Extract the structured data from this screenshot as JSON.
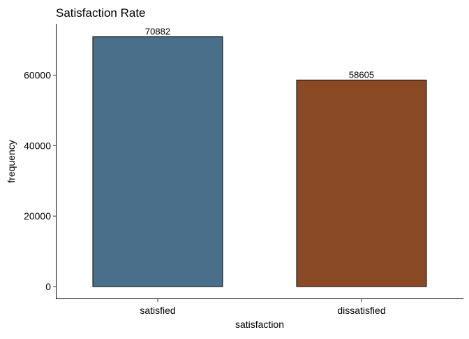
{
  "chart_data": {
    "type": "bar",
    "title": "Satisfaction Rate",
    "xlabel": "satisfaction",
    "ylabel": "frequency",
    "categories": [
      "satisfied",
      "dissatisfied"
    ],
    "values": [
      70882,
      58605
    ],
    "data_labels": [
      "70882",
      "58605"
    ],
    "colors": [
      "#4A6F8A",
      "#8B4A26"
    ],
    "bar_outline_color": "#000000",
    "ylim": [
      0,
      75000
    ],
    "y_ticks": [
      0,
      20000,
      40000,
      60000
    ],
    "y_tick_labels": [
      "0",
      "20000",
      "40000",
      "60000"
    ],
    "grid": false,
    "legend": "none"
  }
}
